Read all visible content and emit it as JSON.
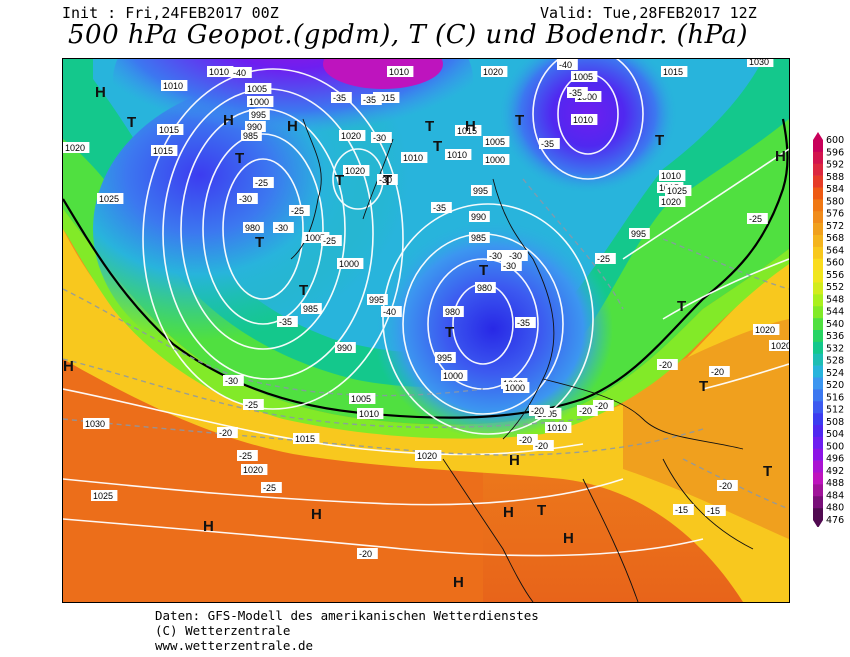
{
  "header": {
    "init": "Init : Fri,24FEB2017 00Z",
    "valid": "Valid: Tue,28FEB2017 12Z",
    "title": "500 hPa Geopot.(gpdm), T (C) und Bodendr. (hPa)"
  },
  "footer": {
    "line1": "Daten: GFS-Modell des amerikanischen Wetterdienstes",
    "line2": "(C) Wetterzentrale",
    "line3": "www.wetterzentrale.de"
  },
  "colorbar": {
    "labels": [
      "600",
      "596",
      "592",
      "588",
      "584",
      "580",
      "576",
      "572",
      "568",
      "564",
      "560",
      "556",
      "552",
      "548",
      "544",
      "540",
      "536",
      "532",
      "528",
      "524",
      "520",
      "516",
      "512",
      "508",
      "504",
      "500",
      "496",
      "492",
      "488",
      "484",
      "480",
      "476"
    ],
    "colors": [
      "#c8005a",
      "#d2144e",
      "#dc2840",
      "#e63c28",
      "#ee5a14",
      "#f07814",
      "#f08c1c",
      "#f0a01e",
      "#f4b41e",
      "#f8c81e",
      "#fadc1e",
      "#f0e61e",
      "#d2ec1e",
      "#aaf01e",
      "#82ea28",
      "#50e040",
      "#28d464",
      "#14c88c",
      "#1ebeb4",
      "#28b4dc",
      "#3c96f0",
      "#3c78f0",
      "#3c5af0",
      "#3c3cf0",
      "#5028f0",
      "#6e1ef0",
      "#8c14e6",
      "#aa14d2",
      "#be14be",
      "#a0149a",
      "#780f78",
      "#500a50"
    ]
  },
  "pressure_labels": [
    "1010",
    "1010",
    "1005",
    "1000",
    "995",
    "990",
    "985",
    "1015",
    "1020",
    "1015",
    "1010",
    "1020",
    "1025",
    "1020",
    "1015",
    "1010",
    "1005",
    "1000",
    "995",
    "990",
    "985",
    "980",
    "980",
    "980",
    "985",
    "990",
    "995",
    "1000",
    "1005",
    "1010",
    "1015",
    "1020",
    "1025",
    "1030",
    "1020",
    "1000",
    "1005",
    "1010",
    "995",
    "1000",
    "1005",
    "1010",
    "1015",
    "1020",
    "1010",
    "1015",
    "1020",
    "1025",
    "1030",
    "1015",
    "1020",
    "1020",
    "1000",
    "1005",
    "1010",
    "995",
    "1000"
  ],
  "temp_labels": [
    "-40",
    "-35",
    "-35",
    "-30",
    "-30",
    "-25",
    "-30",
    "-25",
    "-30",
    "-35",
    "-40",
    "-40",
    "-35",
    "-35",
    "-35",
    "-35",
    "-30",
    "-30",
    "-30",
    "-25",
    "-25",
    "-25",
    "-20",
    "-20",
    "-20",
    "-20",
    "-20",
    "-25",
    "-30",
    "-20",
    "-20",
    "-20",
    "-15",
    "-15",
    "-20",
    "-25",
    "-25",
    "-20"
  ],
  "pressure_centers": [
    "H",
    "H",
    "H",
    "H",
    "H",
    "H",
    "H",
    "H",
    "H",
    "H",
    "H",
    "H",
    "T",
    "T",
    "T",
    "T",
    "T",
    "T",
    "T",
    "T",
    "T",
    "T",
    "T",
    "T",
    "T",
    "T",
    "T",
    "T"
  ]
}
